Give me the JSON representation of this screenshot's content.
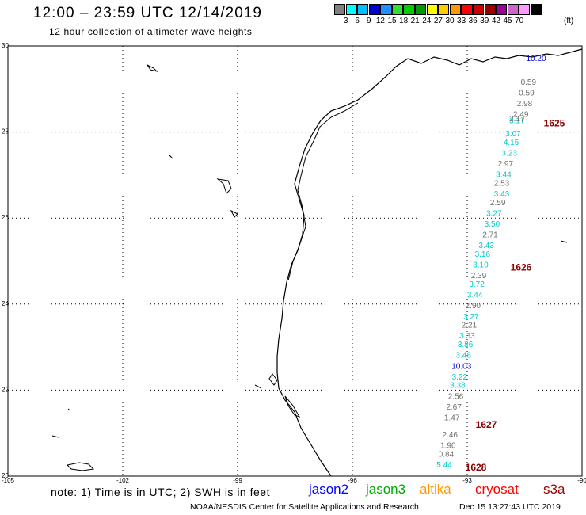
{
  "header": {
    "title": "12:00 – 23:59 UTC 12/14/2019",
    "subtitle": "12 hour collection of altimeter wave heights"
  },
  "legend": {
    "colors": [
      "#808080",
      "#00ffff",
      "#00bfff",
      "#0000cd",
      "#1e90ff",
      "#33dd33",
      "#00cc00",
      "#009900",
      "#ffff00",
      "#ffcc00",
      "#ff9900",
      "#ff0000",
      "#cc0000",
      "#990000",
      "#990099",
      "#cc66cc",
      "#ff99ff",
      "#000000"
    ],
    "ticks": [
      "3",
      "6",
      "9",
      "12",
      "15",
      "18",
      "21",
      "24",
      "27",
      "30",
      "33",
      "36",
      "39",
      "42",
      "45",
      "70"
    ],
    "units": "(ft)"
  },
  "map": {
    "lat_labels": [
      "30",
      "28",
      "26",
      "24",
      "22",
      "20"
    ],
    "lon_labels": [
      "-105",
      "-102",
      "-99",
      "-96",
      "-93",
      "-90"
    ],
    "cycles": [
      {
        "label": "1625",
        "lat": 28.2
      },
      {
        "label": "1626",
        "lat": 24.85
      },
      {
        "label": "1627",
        "lat": 21.2
      },
      {
        "label": "1628",
        "lat": 20.2
      }
    ],
    "wave_heights": [
      {
        "v": "10.20",
        "sat": "jason2",
        "lon": -91.2,
        "lat": 29.65
      },
      {
        "v": "0.59",
        "sat": "gray",
        "lon": -91.4,
        "lat": 29.1
      },
      {
        "v": "0.59",
        "sat": "gray",
        "lon": -91.45,
        "lat": 28.85
      },
      {
        "v": "2.98",
        "sat": "gray",
        "lon": -91.5,
        "lat": 28.6
      },
      {
        "v": "2.49",
        "sat": "gray",
        "lon": -91.6,
        "lat": 28.35
      },
      {
        "v": "3.17",
        "sat": "cyan",
        "lon": -91.7,
        "lat": 28.2
      },
      {
        "v": "2.17",
        "sat": "gray",
        "lon": -91.7,
        "lat": 28.25
      },
      {
        "v": "3.07",
        "sat": "cyan",
        "lon": -91.8,
        "lat": 27.9
      },
      {
        "v": "4.15",
        "sat": "cyan",
        "lon": -91.85,
        "lat": 27.7
      },
      {
        "v": "3.23",
        "sat": "cyan",
        "lon": -91.9,
        "lat": 27.45
      },
      {
        "v": "2.97",
        "sat": "gray",
        "lon": -92.0,
        "lat": 27.2
      },
      {
        "v": "3.44",
        "sat": "cyan",
        "lon": -92.05,
        "lat": 26.95
      },
      {
        "v": "2.53",
        "sat": "gray",
        "lon": -92.1,
        "lat": 26.75
      },
      {
        "v": "3.43",
        "sat": "cyan",
        "lon": -92.1,
        "lat": 26.5
      },
      {
        "v": "2.59",
        "sat": "gray",
        "lon": -92.2,
        "lat": 26.3
      },
      {
        "v": "3.27",
        "sat": "cyan",
        "lon": -92.3,
        "lat": 26.05
      },
      {
        "v": "3.50",
        "sat": "cyan",
        "lon": -92.35,
        "lat": 25.8
      },
      {
        "v": "2.71",
        "sat": "gray",
        "lon": -92.4,
        "lat": 25.55
      },
      {
        "v": "3.43",
        "sat": "cyan",
        "lon": -92.5,
        "lat": 25.3
      },
      {
        "v": "3.16",
        "sat": "cyan",
        "lon": -92.6,
        "lat": 25.1
      },
      {
        "v": "3.10",
        "sat": "cyan",
        "lon": -92.65,
        "lat": 24.85
      },
      {
        "v": "2.39",
        "sat": "gray",
        "lon": -92.7,
        "lat": 24.6
      },
      {
        "v": "3.72",
        "sat": "cyan",
        "lon": -92.75,
        "lat": 24.4
      },
      {
        "v": "3.44",
        "sat": "cyan",
        "lon": -92.8,
        "lat": 24.15
      },
      {
        "v": "2.90",
        "sat": "gray",
        "lon": -92.85,
        "lat": 23.9
      },
      {
        "v": "3.27",
        "sat": "cyan",
        "lon": -92.9,
        "lat": 23.65
      },
      {
        "v": "2.21",
        "sat": "gray",
        "lon": -92.95,
        "lat": 23.45
      },
      {
        "v": "3.33",
        "sat": "cyan",
        "lon": -93.0,
        "lat": 23.2
      },
      {
        "v": "3.86",
        "sat": "cyan",
        "lon": -93.05,
        "lat": 23.0
      },
      {
        "v": "3.48",
        "sat": "cyan",
        "lon": -93.1,
        "lat": 22.75
      },
      {
        "v": "10.03",
        "sat": "jason2",
        "lon": -93.15,
        "lat": 22.5
      },
      {
        "v": "3.22",
        "sat": "cyan",
        "lon": -93.2,
        "lat": 22.25
      },
      {
        "v": "3.38",
        "sat": "cyan",
        "lon": -93.25,
        "lat": 22.05
      },
      {
        "v": "2.56",
        "sat": "gray",
        "lon": -93.3,
        "lat": 21.8
      },
      {
        "v": "2.67",
        "sat": "gray",
        "lon": -93.35,
        "lat": 21.55
      },
      {
        "v": "1.47",
        "sat": "gray",
        "lon": -93.4,
        "lat": 21.3
      },
      {
        "v": "2.46",
        "sat": "gray",
        "lon": -93.45,
        "lat": 20.9
      },
      {
        "v": "1.90",
        "sat": "gray",
        "lon": -93.5,
        "lat": 20.65
      },
      {
        "v": "0.84",
        "sat": "gray",
        "lon": -93.55,
        "lat": 20.45
      },
      {
        "v": "5.44",
        "sat": "cyan",
        "lon": -93.6,
        "lat": 20.2
      }
    ]
  },
  "footer": {
    "note": "note: 1) Time is in UTC; 2) SWH is in feet",
    "satellites": [
      {
        "name": "jason2",
        "color": "#0000ff"
      },
      {
        "name": "jason3",
        "color": "#00aa00"
      },
      {
        "name": "altika",
        "color": "#ff9900"
      },
      {
        "name": "cryosat",
        "color": "#ff0000"
      },
      {
        "name": "s3a",
        "color": "#990000"
      }
    ],
    "credit": "NOAA/NESDIS Center for Satellite Applications and Research",
    "timestamp": "Dec 15 13:27:43 UTC 2019"
  }
}
